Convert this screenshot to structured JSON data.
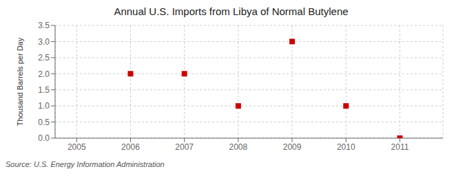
{
  "chart_data": {
    "type": "scatter",
    "title": "Annual U.S. Imports from Libya of Normal Butylene",
    "ylabel": "Thousand Barrels per Day",
    "annotations": [
      "Source: U.S. Energy Information Administration"
    ],
    "x": [
      2006,
      2007,
      2008,
      2009,
      2010,
      2011
    ],
    "values": [
      2.0,
      2.0,
      1.0,
      3.0,
      1.0,
      0.0
    ],
    "color": "#cc0000",
    "marker": "square",
    "xlim": [
      2004.6,
      2011.8
    ],
    "xticks": [
      2005,
      2006,
      2007,
      2008,
      2009,
      2010,
      2011
    ],
    "ylim": [
      0.0,
      3.5
    ],
    "yticks": [
      {
        "value": 0.0,
        "label": "0.0"
      },
      0.5,
      {
        "value": 1.0,
        "label": "1.0"
      },
      1.5,
      {
        "value": 2.0,
        "label": "2.0"
      },
      2.5,
      {
        "value": 3.0,
        "label": "3.0"
      },
      3.5
    ],
    "grid": true
  }
}
